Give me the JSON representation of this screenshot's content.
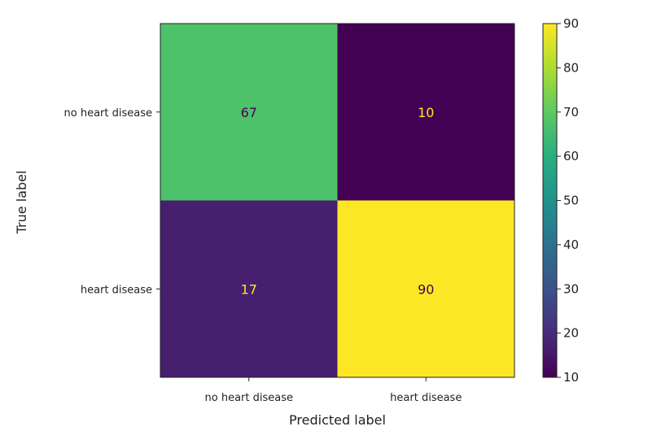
{
  "chart_data": {
    "type": "heatmap",
    "title": "",
    "xlabel": "Predicted label",
    "ylabel": "True label",
    "x_categories": [
      "no heart disease",
      "heart disease"
    ],
    "y_categories": [
      "no heart disease",
      "heart disease"
    ],
    "matrix": [
      [
        67,
        10
      ],
      [
        17,
        90
      ]
    ],
    "colormap": "viridis",
    "colorbar": {
      "min": 10,
      "max": 90,
      "ticks": [
        10,
        20,
        30,
        40,
        50,
        60,
        70,
        80,
        90
      ]
    }
  },
  "colors": {
    "text_dark": "#440154",
    "text_light": "#fde725"
  }
}
